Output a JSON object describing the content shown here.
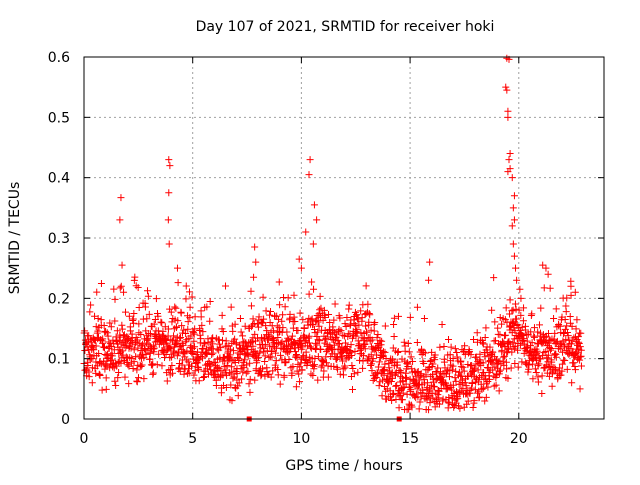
{
  "chart_data": {
    "type": "scatter",
    "title": "Day 107 of 2021, SRMTID for receiver hoki",
    "xlabel": "GPS time / hours",
    "ylabel": "SRMTID / TECUs",
    "xlim": [
      0,
      23.92
    ],
    "ylim": [
      0,
      0.6
    ],
    "x_ticks": [
      0,
      5,
      10,
      15,
      20
    ],
    "x_tick_labels": [
      "0",
      "5",
      "10",
      "15",
      "20"
    ],
    "y_ticks": [
      0,
      0.1,
      0.2,
      0.3,
      0.4,
      0.5,
      0.6
    ],
    "y_tick_labels": [
      "0",
      "0.1",
      "0.2",
      "0.3",
      "0.4",
      "0.5",
      "0.6"
    ],
    "grid": true,
    "marker": "plus",
    "colors": {
      "points": "#ff0000",
      "grid": "#a0a0a0",
      "axes": "#000000"
    },
    "x_range_of_points": [
      0,
      22.9
    ],
    "baseline_profile": [
      {
        "x": 0.0,
        "y": 0.11
      },
      {
        "x": 2.0,
        "y": 0.12
      },
      {
        "x": 4.0,
        "y": 0.13
      },
      {
        "x": 5.5,
        "y": 0.1
      },
      {
        "x": 7.0,
        "y": 0.09
      },
      {
        "x": 8.0,
        "y": 0.12
      },
      {
        "x": 10.0,
        "y": 0.12
      },
      {
        "x": 11.5,
        "y": 0.12
      },
      {
        "x": 13.0,
        "y": 0.13
      },
      {
        "x": 14.0,
        "y": 0.07
      },
      {
        "x": 15.5,
        "y": 0.06
      },
      {
        "x": 17.5,
        "y": 0.06
      },
      {
        "x": 18.8,
        "y": 0.09
      },
      {
        "x": 19.8,
        "y": 0.14
      },
      {
        "x": 21.0,
        "y": 0.1
      },
      {
        "x": 22.0,
        "y": 0.12
      },
      {
        "x": 22.9,
        "y": 0.12
      }
    ],
    "notable_points": [
      {
        "x": 1.7,
        "y": 0.367
      },
      {
        "x": 1.65,
        "y": 0.33
      },
      {
        "x": 1.75,
        "y": 0.255
      },
      {
        "x": 3.9,
        "y": 0.43
      },
      {
        "x": 3.95,
        "y": 0.42
      },
      {
        "x": 3.9,
        "y": 0.375
      },
      {
        "x": 3.88,
        "y": 0.33
      },
      {
        "x": 3.92,
        "y": 0.29
      },
      {
        "x": 4.3,
        "y": 0.25
      },
      {
        "x": 7.85,
        "y": 0.285
      },
      {
        "x": 7.9,
        "y": 0.26
      },
      {
        "x": 7.8,
        "y": 0.235
      },
      {
        "x": 10.4,
        "y": 0.43
      },
      {
        "x": 10.35,
        "y": 0.405
      },
      {
        "x": 10.6,
        "y": 0.355
      },
      {
        "x": 10.7,
        "y": 0.33
      },
      {
        "x": 10.2,
        "y": 0.31
      },
      {
        "x": 10.55,
        "y": 0.29
      },
      {
        "x": 9.9,
        "y": 0.265
      },
      {
        "x": 10.0,
        "y": 0.25
      },
      {
        "x": 15.9,
        "y": 0.26
      },
      {
        "x": 15.85,
        "y": 0.23
      },
      {
        "x": 19.45,
        "y": 0.598
      },
      {
        "x": 19.55,
        "y": 0.596
      },
      {
        "x": 19.4,
        "y": 0.55
      },
      {
        "x": 19.45,
        "y": 0.545
      },
      {
        "x": 19.5,
        "y": 0.51
      },
      {
        "x": 19.5,
        "y": 0.5
      },
      {
        "x": 19.6,
        "y": 0.44
      },
      {
        "x": 19.55,
        "y": 0.43
      },
      {
        "x": 19.6,
        "y": 0.415
      },
      {
        "x": 19.5,
        "y": 0.41
      },
      {
        "x": 19.7,
        "y": 0.4
      },
      {
        "x": 19.8,
        "y": 0.37
      },
      {
        "x": 19.75,
        "y": 0.35
      },
      {
        "x": 19.8,
        "y": 0.33
      },
      {
        "x": 19.7,
        "y": 0.32
      },
      {
        "x": 19.75,
        "y": 0.29
      },
      {
        "x": 19.8,
        "y": 0.27
      },
      {
        "x": 19.85,
        "y": 0.25
      },
      {
        "x": 19.9,
        "y": 0.23
      },
      {
        "x": 20.05,
        "y": 0.215
      },
      {
        "x": 20.1,
        "y": 0.2
      },
      {
        "x": 21.1,
        "y": 0.255
      },
      {
        "x": 21.25,
        "y": 0.25
      },
      {
        "x": 21.35,
        "y": 0.24
      },
      {
        "x": 22.4,
        "y": 0.22
      },
      {
        "x": 22.6,
        "y": 0.21
      }
    ],
    "zero_markers": [
      {
        "x": 7.6,
        "y": 0.0
      },
      {
        "x": 14.5,
        "y": 0.0
      }
    ]
  }
}
